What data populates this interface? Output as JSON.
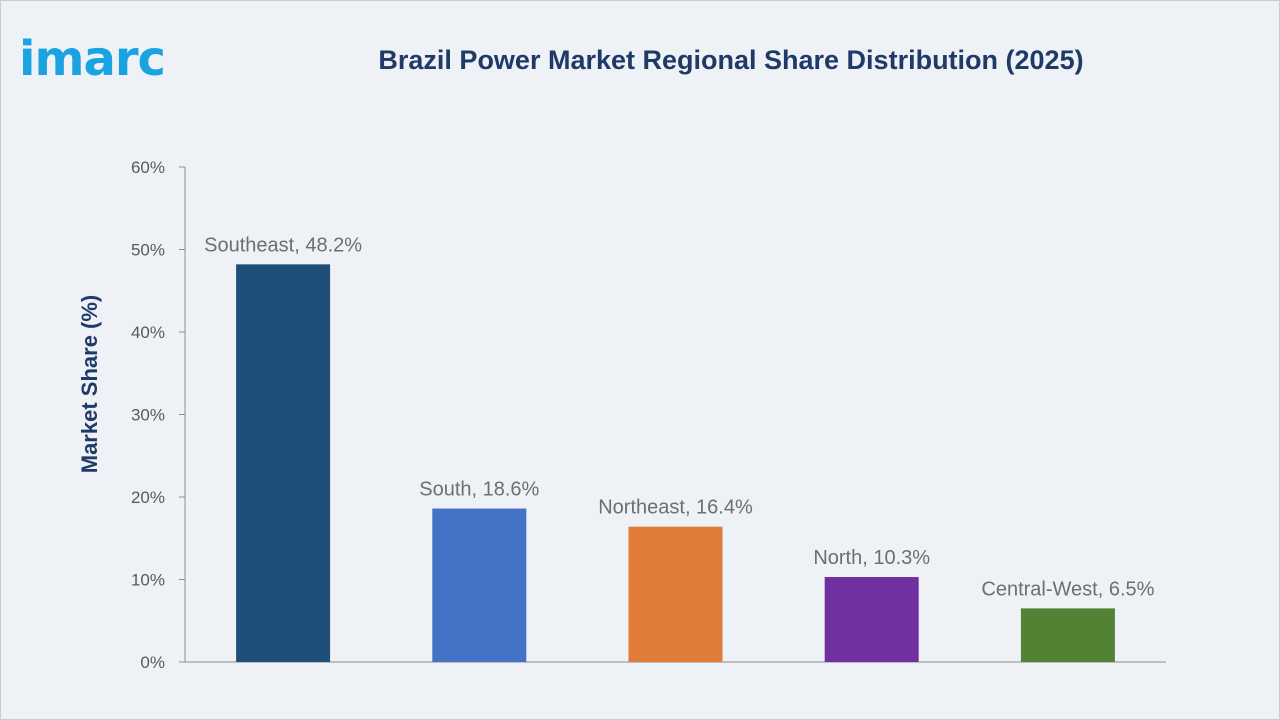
{
  "brand": {
    "logo_text": "imarc",
    "logo_color": "#1aa3e0"
  },
  "chart_data": {
    "type": "bar",
    "title": "Brazil Power Market Regional Share Distribution (2025)",
    "xlabel": "",
    "ylabel": "Market Share (%)",
    "ylim": [
      0,
      60
    ],
    "y_ticks": [
      "0%",
      "10%",
      "20%",
      "30%",
      "40%",
      "50%",
      "60%"
    ],
    "grid": false,
    "legend": "none",
    "categories": [
      "Southeast",
      "South",
      "Northeast",
      "North",
      "Central-West"
    ],
    "values": [
      48.2,
      18.6,
      16.4,
      10.3,
      6.5
    ],
    "data_labels": [
      "Southeast, 48.2%",
      "South, 18.6%",
      "Northeast, 16.4%",
      "North, 10.3%",
      "Central-West, 6.5%"
    ],
    "colors": [
      "#1f4e79",
      "#4472c4",
      "#e07b39",
      "#7030a0",
      "#548235"
    ]
  }
}
